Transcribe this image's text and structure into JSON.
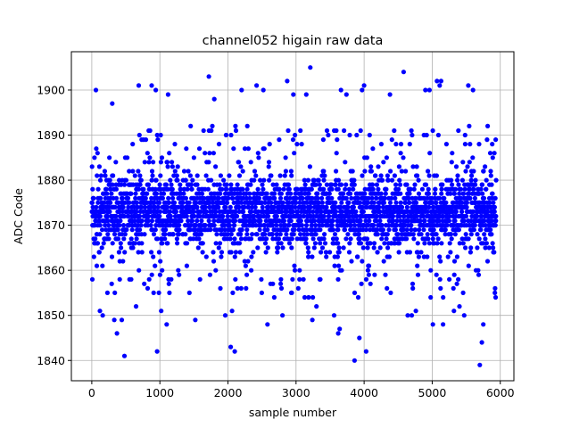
{
  "chart_data": {
    "type": "scatter",
    "title": "channel052 higain raw data",
    "xlabel": "sample number",
    "ylabel": "ADC Code",
    "xlim": [
      -300,
      6200
    ],
    "ylim": [
      1835.5,
      1908.5
    ],
    "xticks": [
      0,
      1000,
      2000,
      3000,
      4000,
      5000,
      6000
    ],
    "yticks": [
      1840,
      1850,
      1860,
      1870,
      1880,
      1890,
      1900
    ],
    "grid": true,
    "marker_color": "#0000ff",
    "n_samples": 5940,
    "x_start": 0,
    "x_end": 5940,
    "band_min": 1858,
    "band_max": 1888,
    "center": 1873,
    "seed": 52,
    "outliers": [
      {
        "x": 60,
        "y": 1900
      },
      {
        "x": 120,
        "y": 1851
      },
      {
        "x": 160,
        "y": 1850
      },
      {
        "x": 230,
        "y": 1855
      },
      {
        "x": 300,
        "y": 1897
      },
      {
        "x": 330,
        "y": 1849
      },
      {
        "x": 370,
        "y": 1846
      },
      {
        "x": 440,
        "y": 1849
      },
      {
        "x": 480,
        "y": 1841
      },
      {
        "x": 650,
        "y": 1852
      },
      {
        "x": 690,
        "y": 1901
      },
      {
        "x": 880,
        "y": 1901
      },
      {
        "x": 940,
        "y": 1900
      },
      {
        "x": 960,
        "y": 1842
      },
      {
        "x": 1020,
        "y": 1851
      },
      {
        "x": 1100,
        "y": 1848
      },
      {
        "x": 1120,
        "y": 1899
      },
      {
        "x": 1520,
        "y": 1849
      },
      {
        "x": 1720,
        "y": 1903
      },
      {
        "x": 1800,
        "y": 1898
      },
      {
        "x": 1960,
        "y": 1850
      },
      {
        "x": 2040,
        "y": 1843
      },
      {
        "x": 2060,
        "y": 1851
      },
      {
        "x": 2100,
        "y": 1842
      },
      {
        "x": 2200,
        "y": 1900
      },
      {
        "x": 2420,
        "y": 1901
      },
      {
        "x": 2520,
        "y": 1900
      },
      {
        "x": 2580,
        "y": 1848
      },
      {
        "x": 2800,
        "y": 1850
      },
      {
        "x": 2870,
        "y": 1902
      },
      {
        "x": 2960,
        "y": 1899
      },
      {
        "x": 3150,
        "y": 1899
      },
      {
        "x": 3210,
        "y": 1905
      },
      {
        "x": 3240,
        "y": 1849
      },
      {
        "x": 3300,
        "y": 1852
      },
      {
        "x": 3560,
        "y": 1850
      },
      {
        "x": 3620,
        "y": 1846
      },
      {
        "x": 3640,
        "y": 1847
      },
      {
        "x": 3660,
        "y": 1900
      },
      {
        "x": 3740,
        "y": 1899
      },
      {
        "x": 3860,
        "y": 1840
      },
      {
        "x": 3930,
        "y": 1845
      },
      {
        "x": 3970,
        "y": 1900
      },
      {
        "x": 4000,
        "y": 1901
      },
      {
        "x": 4030,
        "y": 1842
      },
      {
        "x": 4380,
        "y": 1899
      },
      {
        "x": 4580,
        "y": 1904
      },
      {
        "x": 4640,
        "y": 1850
      },
      {
        "x": 4700,
        "y": 1850
      },
      {
        "x": 4760,
        "y": 1851
      },
      {
        "x": 4900,
        "y": 1900
      },
      {
        "x": 4960,
        "y": 1900
      },
      {
        "x": 5010,
        "y": 1848
      },
      {
        "x": 5070,
        "y": 1902
      },
      {
        "x": 5110,
        "y": 1901
      },
      {
        "x": 5130,
        "y": 1902
      },
      {
        "x": 5160,
        "y": 1848
      },
      {
        "x": 5320,
        "y": 1851
      },
      {
        "x": 5400,
        "y": 1852
      },
      {
        "x": 5470,
        "y": 1850
      },
      {
        "x": 5530,
        "y": 1901
      },
      {
        "x": 5600,
        "y": 1900
      },
      {
        "x": 5700,
        "y": 1839
      },
      {
        "x": 5730,
        "y": 1844
      },
      {
        "x": 5750,
        "y": 1848
      }
    ]
  }
}
